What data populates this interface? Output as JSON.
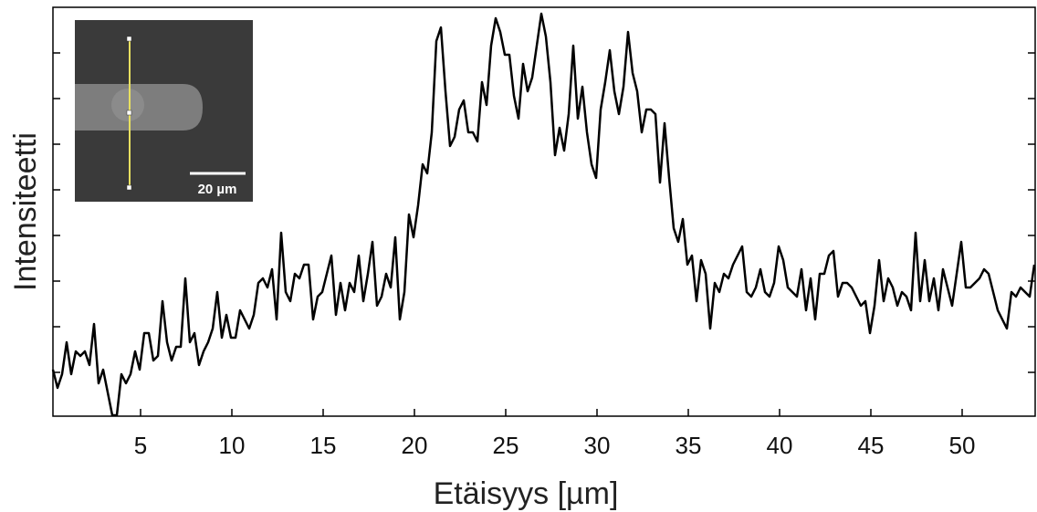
{
  "chart_data": {
    "type": "line",
    "xlabel": "Etäisyys [µm]",
    "ylabel": "Intensiteetti",
    "xlim": [
      0.2,
      54
    ],
    "xticks": [
      5,
      10,
      15,
      20,
      25,
      30,
      35,
      40,
      45,
      50
    ],
    "ylim": [
      2,
      450
    ],
    "yticks": [
      50,
      100,
      150,
      200,
      250,
      300,
      350,
      400
    ],
    "series": [
      {
        "color": "#000000",
        "x": [
          0.2,
          0.45,
          0.7,
          0.95,
          1.2,
          1.45,
          1.7,
          1.95,
          2.2,
          2.45,
          2.7,
          2.95,
          3.2,
          3.45,
          3.7,
          3.95,
          4.2,
          4.45,
          4.7,
          4.95,
          5.2,
          5.45,
          5.7,
          5.95,
          6.2,
          6.45,
          6.7,
          6.95,
          7.2,
          7.45,
          7.7,
          7.95,
          8.2,
          8.45,
          8.7,
          8.95,
          9.2,
          9.45,
          9.7,
          9.95,
          10.2,
          10.45,
          10.7,
          10.95,
          11.2,
          11.45,
          11.7,
          11.95,
          12.2,
          12.45,
          12.7,
          12.95,
          13.2,
          13.45,
          13.7,
          13.95,
          14.2,
          14.45,
          14.7,
          14.95,
          15.2,
          15.45,
          15.7,
          15.95,
          16.2,
          16.45,
          16.7,
          16.95,
          17.2,
          17.45,
          17.7,
          17.95,
          18.2,
          18.45,
          18.7,
          18.95,
          19.2,
          19.45,
          19.7,
          19.95,
          20.2,
          20.45,
          20.7,
          20.95,
          21.2,
          21.45,
          21.7,
          21.95,
          22.2,
          22.45,
          22.7,
          22.95,
          23.2,
          23.45,
          23.7,
          23.95,
          24.2,
          24.45,
          24.7,
          24.95,
          25.2,
          25.45,
          25.7,
          25.95,
          26.2,
          26.45,
          26.7,
          26.95,
          27.2,
          27.45,
          27.7,
          27.95,
          28.2,
          28.45,
          28.7,
          28.95,
          29.2,
          29.45,
          29.7,
          29.95,
          30.2,
          30.45,
          30.7,
          30.95,
          31.2,
          31.45,
          31.7,
          31.95,
          32.2,
          32.45,
          32.7,
          32.95,
          33.2,
          33.45,
          33.7,
          33.95,
          34.2,
          34.45,
          34.7,
          34.95,
          35.2,
          35.45,
          35.7,
          35.95,
          36.2,
          36.45,
          36.7,
          36.95,
          37.2,
          37.45,
          37.7,
          37.95,
          38.2,
          38.45,
          38.7,
          38.95,
          39.2,
          39.45,
          39.7,
          39.95,
          40.2,
          40.45,
          40.7,
          40.95,
          41.2,
          41.45,
          41.7,
          41.95,
          42.2,
          42.45,
          42.7,
          42.95,
          43.2,
          43.45,
          43.7,
          43.95,
          44.2,
          44.45,
          44.7,
          44.95,
          45.2,
          45.45,
          45.7,
          45.95,
          46.2,
          46.45,
          46.7,
          46.95,
          47.2,
          47.45,
          47.7,
          47.95,
          48.2,
          48.45,
          48.7,
          48.95,
          49.2,
          49.45,
          49.7,
          49.95,
          50.2,
          50.45,
          50.7,
          50.95,
          51.2,
          51.45,
          51.7,
          51.95,
          52.2,
          52.45,
          52.7,
          52.95,
          53.2,
          53.45,
          53.7,
          53.95
        ],
        "values": [
          53,
          33,
          48,
          83,
          48,
          73,
          68,
          73,
          58,
          103,
          38,
          53,
          28,
          3,
          3,
          48,
          38,
          48,
          73,
          53,
          93,
          93,
          63,
          68,
          128,
          83,
          63,
          78,
          78,
          153,
          83,
          93,
          58,
          73,
          83,
          98,
          138,
          88,
          113,
          88,
          88,
          118,
          108,
          98,
          113,
          148,
          153,
          143,
          163,
          108,
          203,
          138,
          128,
          158,
          153,
          168,
          168,
          108,
          133,
          138,
          158,
          178,
          113,
          148,
          118,
          148,
          138,
          178,
          128,
          158,
          193,
          123,
          133,
          158,
          143,
          198,
          108,
          138,
          223,
          198,
          233,
          278,
          268,
          313,
          413,
          428,
          358,
          298,
          308,
          338,
          348,
          313,
          313,
          303,
          368,
          343,
          408,
          438,
          423,
          398,
          398,
          353,
          328,
          388,
          358,
          373,
          408,
          443,
          418,
          368,
          288,
          318,
          293,
          333,
          408,
          328,
          363,
          313,
          278,
          263,
          338,
          368,
          403,
          358,
          333,
          363,
          423,
          378,
          358,
          313,
          338,
          338,
          333,
          258,
          323,
          263,
          208,
          193,
          218,
          168,
          178,
          128,
          173,
          158,
          98,
          148,
          138,
          158,
          153,
          168,
          178,
          188,
          138,
          133,
          143,
          163,
          138,
          133,
          148,
          188,
          173,
          143,
          138,
          133,
          163,
          118,
          153,
          108,
          158,
          158,
          178,
          183,
          133,
          148,
          148,
          143,
          133,
          123,
          128,
          93,
          123,
          173,
          128,
          153,
          143,
          123,
          138,
          133,
          118,
          203,
          128,
          173,
          128,
          153,
          118,
          163,
          143,
          123,
          158,
          193,
          143,
          143,
          148,
          153,
          163,
          158,
          138,
          118,
          108,
          98,
          138,
          133,
          143,
          138,
          133,
          168
        ]
      }
    ]
  },
  "inset": {
    "scale_bar": "20 µm"
  }
}
